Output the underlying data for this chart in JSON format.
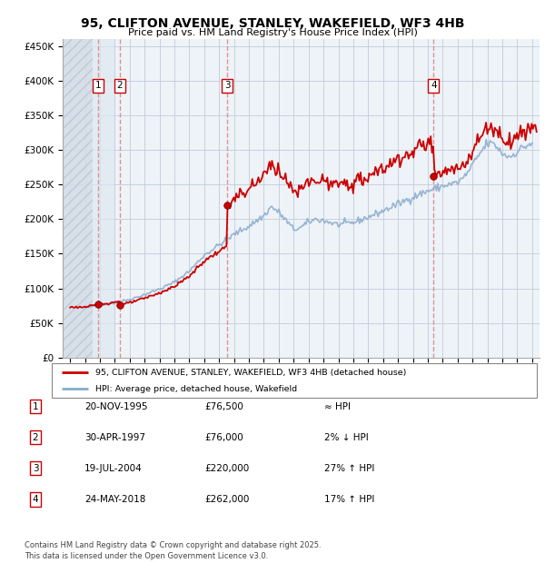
{
  "title": "95, CLIFTON AVENUE, STANLEY, WAKEFIELD, WF3 4HB",
  "subtitle": "Price paid vs. HM Land Registry's House Price Index (HPI)",
  "ylim": [
    0,
    460000
  ],
  "yticks": [
    0,
    50000,
    100000,
    150000,
    200000,
    250000,
    300000,
    350000,
    400000,
    450000
  ],
  "ytick_labels": [
    "£0",
    "£50K",
    "£100K",
    "£150K",
    "£200K",
    "£250K",
    "£300K",
    "£350K",
    "£400K",
    "£450K"
  ],
  "xlim_start": 1993.5,
  "xlim_end": 2025.5,
  "sales": [
    {
      "date_num": 1995.89,
      "price": 76500,
      "label": "1"
    },
    {
      "date_num": 1997.33,
      "price": 76000,
      "label": "2"
    },
    {
      "date_num": 2004.55,
      "price": 220000,
      "label": "3"
    },
    {
      "date_num": 2018.39,
      "price": 262000,
      "label": "4"
    }
  ],
  "legend_line1": "95, CLIFTON AVENUE, STANLEY, WAKEFIELD, WF3 4HB (detached house)",
  "legend_line2": "HPI: Average price, detached house, Wakefield",
  "table_rows": [
    {
      "num": "1",
      "date": "20-NOV-1995",
      "price": "£76,500",
      "vs_hpi": "≈ HPI"
    },
    {
      "num": "2",
      "date": "30-APR-1997",
      "price": "£76,000",
      "vs_hpi": "2% ↓ HPI"
    },
    {
      "num": "3",
      "date": "19-JUL-2004",
      "price": "£220,000",
      "vs_hpi": "27% ↑ HPI"
    },
    {
      "num": "4",
      "date": "24-MAY-2018",
      "price": "£262,000",
      "vs_hpi": "17% ↑ HPI"
    }
  ],
  "footer": "Contains HM Land Registry data © Crown copyright and database right 2025.\nThis data is licensed under the Open Government Licence v3.0.",
  "sale_color": "#cc0000",
  "hpi_color": "#88aacc",
  "line_color": "#cc0000",
  "dashed_vline_color": "#dd8888"
}
